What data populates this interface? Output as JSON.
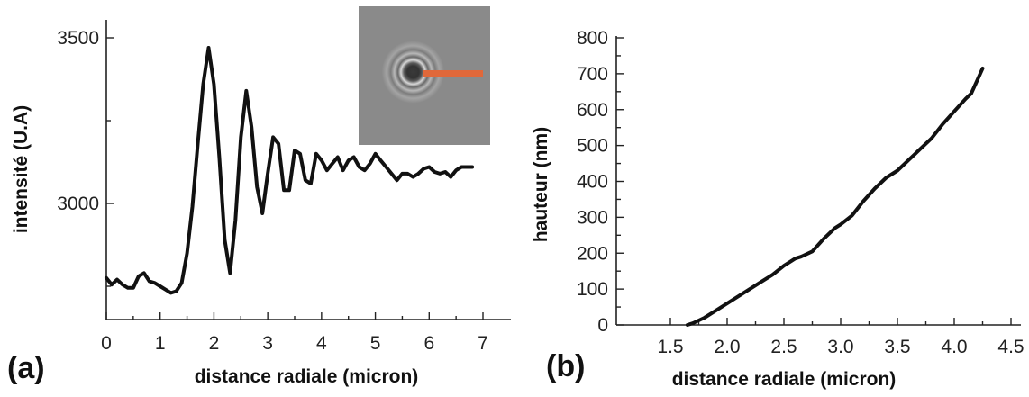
{
  "chart_data": [
    {
      "type": "line",
      "panel_label": "(a)",
      "xlabel": "distance radiale (micron)",
      "ylabel": "intensité (U.A)",
      "xlim": [
        0,
        7.5
      ],
      "ylim": [
        2700,
        3560
      ],
      "x_ticks": [
        0,
        1,
        2,
        3,
        4,
        5,
        6,
        7
      ],
      "y_ticks": [
        3000,
        3500
      ],
      "grid": false,
      "series": [
        {
          "x": [
            0.0,
            0.1,
            0.2,
            0.3,
            0.4,
            0.5,
            0.6,
            0.7,
            0.8,
            0.9,
            1.0,
            1.1,
            1.2,
            1.3,
            1.4,
            1.5,
            1.6,
            1.7,
            1.8,
            1.9,
            2.0,
            2.1,
            2.2,
            2.3,
            2.4,
            2.5,
            2.6,
            2.7,
            2.8,
            2.9,
            3.0,
            3.1,
            3.2,
            3.3,
            3.4,
            3.5,
            3.6,
            3.7,
            3.8,
            3.9,
            4.0,
            4.1,
            4.2,
            4.3,
            4.4,
            4.5,
            4.6,
            4.7,
            4.8,
            4.9,
            5.0,
            5.1,
            5.2,
            5.3,
            5.4,
            5.5,
            5.6,
            5.7,
            5.8,
            5.9,
            6.0,
            6.1,
            6.2,
            6.3,
            6.4,
            6.5,
            6.6,
            6.7,
            6.8
          ],
          "y": [
            2775,
            2755,
            2770,
            2755,
            2745,
            2745,
            2780,
            2790,
            2765,
            2760,
            2750,
            2740,
            2730,
            2735,
            2760,
            2850,
            2990,
            3180,
            3360,
            3470,
            3360,
            3140,
            2890,
            2790,
            2950,
            3200,
            3340,
            3230,
            3050,
            2970,
            3090,
            3200,
            3180,
            3040,
            3040,
            3160,
            3150,
            3070,
            3060,
            3150,
            3130,
            3100,
            3120,
            3140,
            3100,
            3130,
            3140,
            3110,
            3100,
            3120,
            3150,
            3130,
            3110,
            3090,
            3070,
            3090,
            3090,
            3080,
            3090,
            3105,
            3110,
            3095,
            3090,
            3095,
            3080,
            3100,
            3110,
            3110,
            3110
          ]
        }
      ],
      "inset": {
        "background_color": "#8a8a8a",
        "profile_line_color": "#e0683a"
      }
    },
    {
      "type": "line",
      "panel_label": "(b)",
      "xlabel": "distance radiale (micron)",
      "ylabel": "hauteur (nm)",
      "xlim": [
        1.25,
        4.5
      ],
      "ylim": [
        0,
        800
      ],
      "x_ticks": [
        "1.5",
        "2.0",
        "2.5",
        "3.0",
        "3.5",
        "4.0",
        "4.5"
      ],
      "y_ticks": [
        0,
        100,
        200,
        300,
        400,
        500,
        600,
        700,
        800
      ],
      "grid": false,
      "series": [
        {
          "x": [
            1.65,
            1.7,
            1.8,
            1.9,
            2.0,
            2.1,
            2.2,
            2.3,
            2.4,
            2.5,
            2.6,
            2.65,
            2.75,
            2.85,
            2.95,
            3.0,
            3.1,
            3.2,
            3.3,
            3.4,
            3.5,
            3.6,
            3.7,
            3.8,
            3.9,
            4.0,
            4.1,
            4.15,
            4.2,
            4.25
          ],
          "y": [
            0,
            5,
            20,
            40,
            60,
            80,
            100,
            120,
            140,
            165,
            185,
            190,
            205,
            240,
            270,
            280,
            305,
            345,
            380,
            410,
            430,
            460,
            490,
            520,
            560,
            595,
            630,
            645,
            680,
            715
          ]
        }
      ]
    }
  ]
}
